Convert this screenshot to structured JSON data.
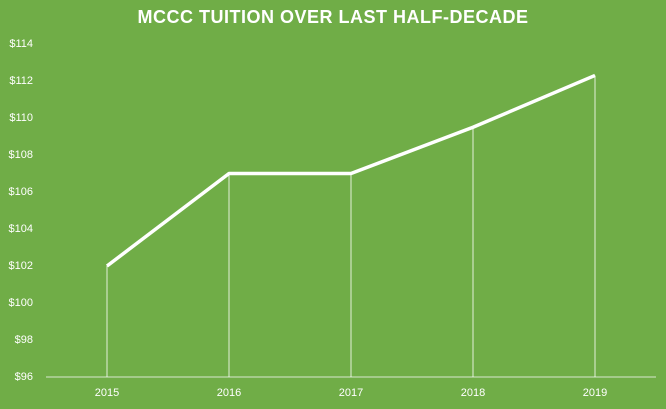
{
  "chart_data": {
    "type": "line",
    "title": "MCCC TUITION OVER LAST HALF-DECADE",
    "categories": [
      "2015",
      "2016",
      "2017",
      "2018",
      "2019"
    ],
    "values": [
      102,
      107,
      107,
      109.5,
      112.3
    ],
    "color": "#ffffff",
    "background": "#70ad47",
    "drop_lines": true,
    "grid": false,
    "ylim": [
      96,
      114
    ],
    "yticks": [
      {
        "value": 96,
        "label": "$96"
      },
      {
        "value": 98,
        "label": "$98"
      },
      {
        "value": 100,
        "label": "$100"
      },
      {
        "value": 102,
        "label": "$102"
      },
      {
        "value": 104,
        "label": "$104"
      },
      {
        "value": 106,
        "label": "$106"
      },
      {
        "value": 108,
        "label": "$108"
      },
      {
        "value": 110,
        "label": "$110"
      },
      {
        "value": 112,
        "label": "$112"
      },
      {
        "value": 114,
        "label": "$114"
      }
    ]
  }
}
